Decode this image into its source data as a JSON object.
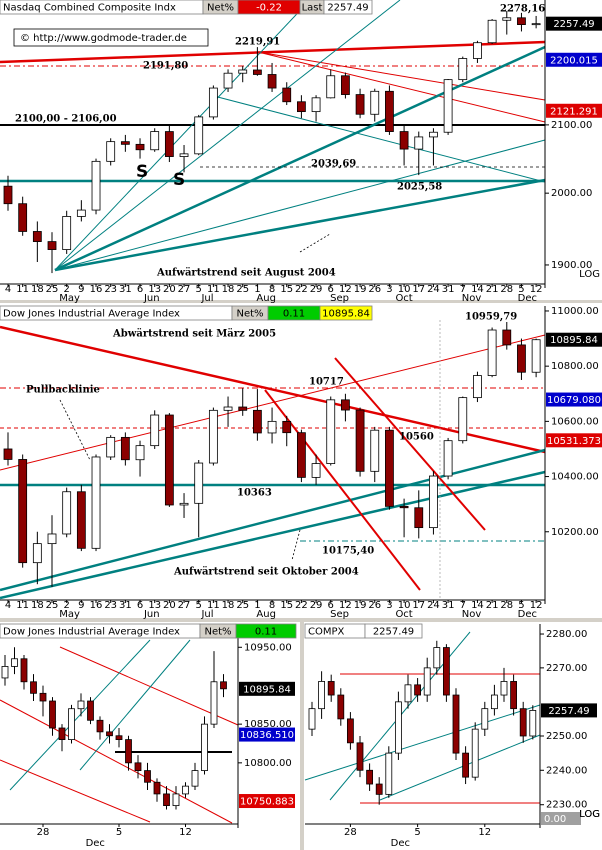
{
  "chart_data": [
    {
      "type": "candlestick",
      "title": "Nasdaq Combined Composite Indx",
      "net_label": "Net%",
      "net": -0.22,
      "last_label": "Last",
      "last": 2257.49,
      "source": "© http://www.godmode-trader.de",
      "log": true,
      "scale_label": "LOG",
      "categories": [
        "4",
        "11",
        "18",
        "25",
        "2",
        "9",
        "16",
        "23",
        "31",
        "6",
        "13",
        "20",
        "27",
        "5",
        "11",
        "18",
        "25",
        "1",
        "8",
        "15",
        "22",
        "29",
        "6",
        "12",
        "19",
        "26",
        "3",
        "10",
        "17",
        "24",
        "31",
        "7",
        "14",
        "21",
        "28",
        "5",
        "12"
      ],
      "months": [
        "May",
        "Jun",
        "Jul",
        "Aug",
        "Sep",
        "Oct",
        "Nov",
        "Dec"
      ],
      "open": [
        2010,
        1985,
        1946,
        1932,
        1921,
        1967,
        1976,
        2046,
        2075,
        2071,
        2063,
        2090,
        2053,
        2057,
        2112,
        2156,
        2179,
        2184,
        2177,
        2156,
        2135,
        2120,
        2141,
        2175,
        2146,
        2116,
        2151,
        2090,
        2064,
        2082,
        2089,
        2169,
        2202,
        2227,
        2263,
        2267,
        2256
      ],
      "high": [
        2025,
        1995,
        1960,
        1945,
        1975,
        1990,
        2050,
        2080,
        2085,
        2080,
        2095,
        2100,
        2070,
        2115,
        2160,
        2185,
        2190,
        2220,
        2195,
        2165,
        2145,
        2145,
        2185,
        2180,
        2155,
        2155,
        2160,
        2100,
        2090,
        2095,
        2170,
        2205,
        2230,
        2265,
        2278,
        2275,
        2270
      ],
      "low": [
        1975,
        1940,
        1904,
        1889,
        1915,
        1960,
        1970,
        2040,
        2060,
        2050,
        2060,
        2045,
        2030,
        2055,
        2108,
        2150,
        2165,
        2175,
        2150,
        2130,
        2110,
        2105,
        2140,
        2140,
        2110,
        2105,
        2085,
        2040,
        2026,
        2040,
        2085,
        2165,
        2195,
        2225,
        2240,
        2245,
        2250
      ],
      "close": [
        1985,
        1946,
        1932,
        1921,
        1967,
        1976,
        2046,
        2075,
        2071,
        2063,
        2090,
        2053,
        2057,
        2112,
        2156,
        2179,
        2184,
        2177,
        2156,
        2135,
        2120,
        2141,
        2175,
        2146,
        2116,
        2151,
        2090,
        2064,
        2082,
        2089,
        2169,
        2202,
        2227,
        2263,
        2267,
        2256,
        2257.49
      ],
      "ylim": [
        1877,
        2296
      ],
      "yticks": [
        {
          "value": 1900,
          "label": "1900.00"
        },
        {
          "value": 2000,
          "label": "2000.00"
        },
        {
          "value": 2100,
          "label": "2100.00"
        }
      ],
      "price_tags": [
        {
          "value": 2257.49,
          "color": "#000000"
        },
        {
          "value": 2200.015,
          "color": "#0000cc"
        },
        {
          "value": 2121.291,
          "color": "#dd0000"
        }
      ],
      "annotations": [
        "2278,16",
        "2219,91",
        "2191,80",
        "2100,00 - 2106,00",
        "2039,69",
        "2025,58",
        "Aufwärtstrend seit August 2004",
        "S",
        "S"
      ]
    },
    {
      "type": "candlestick",
      "title": "Dow Jones Industrial Average Index",
      "net_label": "Net%",
      "net": 0.11,
      "last": 10895.84,
      "log": false,
      "categories": [
        "4",
        "11",
        "18",
        "25",
        "2",
        "9",
        "16",
        "23",
        "31",
        "6",
        "13",
        "20",
        "27",
        "5",
        "11",
        "18",
        "25",
        "1",
        "8",
        "15",
        "22",
        "29",
        "6",
        "12",
        "19",
        "26",
        "3",
        "10",
        "17",
        "24",
        "31",
        "7",
        "14",
        "21",
        "28",
        "5",
        "12"
      ],
      "months": [
        "May",
        "Jun",
        "Jul",
        "Aug",
        "Sep",
        "Oct",
        "Nov",
        "Dec"
      ],
      "open": [
        10500,
        10462,
        10088,
        10157,
        10192,
        10345,
        10140,
        10471,
        10542,
        10461,
        10512,
        10623,
        10297,
        10303,
        10449,
        10640,
        10652,
        10640,
        10558,
        10600,
        10559,
        10397,
        10447,
        10678,
        10641,
        10419,
        10568,
        10292,
        10287,
        10215,
        10402,
        10530,
        10686,
        10766,
        10931,
        10877,
        10778
      ],
      "high": [
        10560,
        10480,
        10200,
        10260,
        10360,
        10370,
        10480,
        10550,
        10560,
        10530,
        10640,
        10630,
        10340,
        10460,
        10650,
        10690,
        10720,
        10717,
        10650,
        10620,
        10570,
        10480,
        10690,
        10700,
        10650,
        10580,
        10580,
        10320,
        10350,
        10420,
        10540,
        10690,
        10780,
        10940,
        10960,
        10900,
        10900
      ],
      "low": [
        10440,
        10070,
        10010,
        10000,
        10180,
        10130,
        10130,
        10460,
        10440,
        10400,
        10500,
        10290,
        10250,
        10180,
        10440,
        10580,
        10620,
        10530,
        10520,
        10510,
        10380,
        10370,
        10440,
        10600,
        10400,
        10380,
        10280,
        10180,
        10176,
        10190,
        10390,
        10520,
        10670,
        10760,
        10860,
        10750,
        10760
      ],
      "close": [
        10462,
        10088,
        10157,
        10192,
        10345,
        10140,
        10471,
        10542,
        10461,
        10512,
        10623,
        10297,
        10303,
        10449,
        10640,
        10652,
        10640,
        10558,
        10600,
        10559,
        10397,
        10447,
        10678,
        10641,
        10419,
        10568,
        10292,
        10287,
        10215,
        10402,
        10530,
        10686,
        10766,
        10931,
        10877,
        10778,
        10895.84
      ],
      "ylim": [
        9960,
        11018
      ],
      "yticks": [
        {
          "value": 10200,
          "label": "10200.00"
        },
        {
          "value": 10400,
          "label": "10400.00"
        },
        {
          "value": 10600,
          "label": "10600.00"
        },
        {
          "value": 10800,
          "label": "10800.00"
        },
        {
          "value": 11000,
          "label": "11000.00"
        }
      ],
      "price_tags": [
        {
          "value": 10895.84,
          "color": "#000000"
        },
        {
          "value": 10679.08,
          "label": "10679.080",
          "color": "#0000cc"
        },
        {
          "value": 10531.373,
          "color": "#dd0000"
        }
      ],
      "annotations": [
        "10959,79",
        "Abwärtstrend seit März 2005",
        "Pullbacklinie",
        "10717",
        "10560",
        "10363",
        "10175,40",
        "Aufwärtstrend seit Oktober 2004"
      ]
    },
    {
      "type": "candlestick",
      "title": "Dow Jones Industrial Average Index",
      "net_label": "Net%",
      "net": 0.11,
      "log": true,
      "scale_label": "LOG",
      "categories": [
        null,
        null,
        null,
        null,
        "28",
        null,
        null,
        null,
        null,
        null,
        null,
        null,
        "5",
        null,
        null,
        null,
        null,
        null,
        null,
        "12",
        null,
        null,
        null,
        null
      ],
      "months": [
        "Dec"
      ],
      "open": [
        10910,
        10925,
        10935,
        10905,
        10890,
        10880,
        10845,
        10830,
        10870,
        10880,
        10855,
        10840,
        10835,
        10830,
        10800,
        10790,
        10775,
        10760,
        10745,
        10760,
        10770,
        10790,
        10850,
        10905
      ],
      "high": [
        10940,
        10950,
        10940,
        10915,
        10900,
        10885,
        10850,
        10875,
        10890,
        10885,
        10860,
        10850,
        10845,
        10835,
        10810,
        10800,
        10780,
        10770,
        10770,
        10775,
        10800,
        10860,
        10945,
        10915
      ],
      "low": [
        10900,
        10915,
        10895,
        10880,
        10860,
        10835,
        10815,
        10825,
        10860,
        10850,
        10830,
        10825,
        10820,
        10790,
        10780,
        10765,
        10750,
        10740,
        10740,
        10755,
        10765,
        10785,
        10845,
        10885
      ],
      "close": [
        10925,
        10935,
        10905,
        10890,
        10880,
        10845,
        10830,
        10870,
        10880,
        10855,
        10840,
        10835,
        10830,
        10800,
        10790,
        10775,
        10760,
        10745,
        10760,
        10770,
        10790,
        10850,
        10905,
        10895.84
      ],
      "ylim": [
        10724,
        10970
      ],
      "yticks": [
        {
          "value": 10800,
          "label": "10800.00"
        },
        {
          "value": 10850,
          "label": "10850.00"
        },
        {
          "value": 10950,
          "label": "10950.00"
        }
      ],
      "price_tags": [
        {
          "value": 10895.84,
          "color": "#000000"
        },
        {
          "value": 10836.51,
          "label": "10836.510",
          "color": "#0000cc"
        },
        {
          "value": 10750.883,
          "color": "#dd0000"
        }
      ],
      "annotations": []
    },
    {
      "type": "candlestick",
      "title": "COMPX",
      "last": 2257.49,
      "status": {
        "value": 0,
        "label": "0.00"
      },
      "log": true,
      "scale_label": "LOG",
      "categories": [
        null,
        null,
        null,
        null,
        "28",
        null,
        null,
        null,
        null,
        null,
        null,
        "5",
        null,
        null,
        null,
        null,
        null,
        null,
        "12",
        null,
        null,
        null,
        null,
        null
      ],
      "months": [
        "Dec"
      ],
      "open": [
        2252,
        2258,
        2266,
        2262,
        2255,
        2248,
        2240,
        2236,
        2233,
        2245,
        2260,
        2265,
        2262,
        2270,
        2276,
        2262,
        2245,
        2238,
        2252,
        2258,
        2262,
        2266,
        2258,
        2250
      ],
      "high": [
        2260,
        2269,
        2268,
        2264,
        2257,
        2250,
        2242,
        2238,
        2247,
        2263,
        2268,
        2267,
        2273,
        2278,
        2277,
        2264,
        2247,
        2254,
        2260,
        2265,
        2270,
        2268,
        2260,
        2259
      ],
      "low": [
        2250,
        2255,
        2260,
        2253,
        2246,
        2238,
        2234,
        2230,
        2232,
        2243,
        2258,
        2260,
        2260,
        2268,
        2260,
        2243,
        2236,
        2237,
        2250,
        2256,
        2260,
        2256,
        2248,
        2249
      ],
      "close": [
        2258,
        2266,
        2262,
        2255,
        2248,
        2240,
        2236,
        2233,
        2245,
        2260,
        2265,
        2262,
        2270,
        2276,
        2262,
        2245,
        2238,
        2252,
        2258,
        2262,
        2266,
        2258,
        2250,
        2257.49
      ],
      "ylim": [
        2225,
        2280.6
      ],
      "yticks": [
        {
          "value": 2230,
          "label": "2230.00"
        },
        {
          "value": 2240,
          "label": "2240.00"
        },
        {
          "value": 2250,
          "label": "2250.00"
        },
        {
          "value": 2270,
          "label": "2270.00"
        },
        {
          "value": 2280,
          "label": "2280.00"
        }
      ],
      "price_tags": [
        {
          "value": 2257.49,
          "color": "#000000"
        }
      ],
      "annotations": []
    }
  ]
}
